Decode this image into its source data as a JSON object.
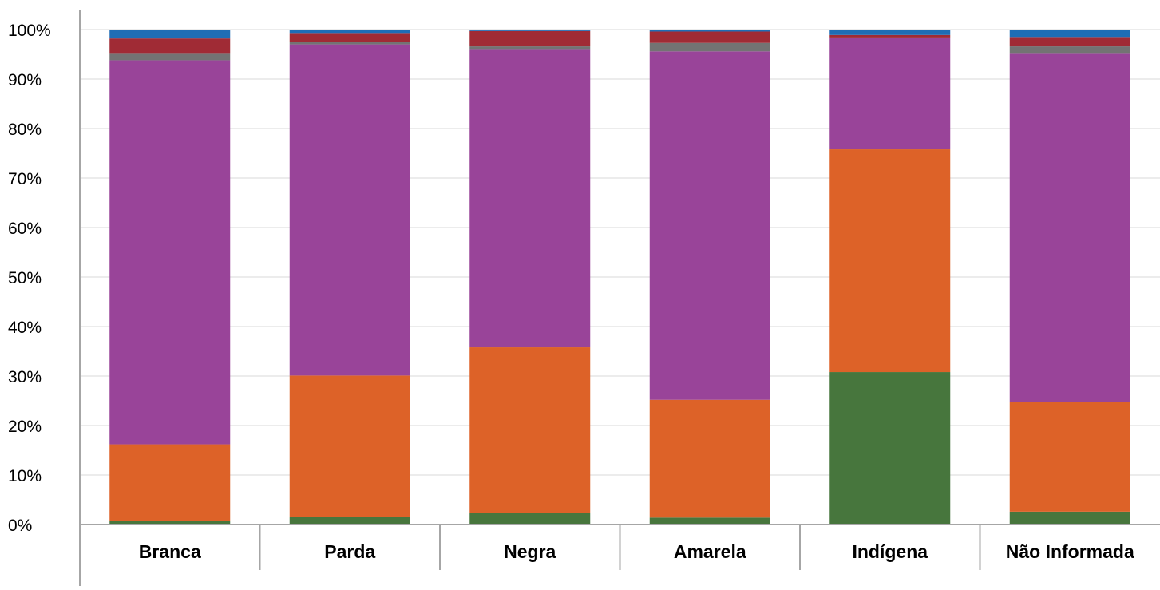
{
  "chart_data": {
    "type": "bar",
    "stacked": true,
    "normalized": true,
    "categories": [
      "Branca",
      "Parda",
      "Negra",
      "Amarela",
      "Indígena",
      "Não Informada"
    ],
    "series": [
      {
        "color": "#47763d",
        "values": [
          0.8,
          1.6,
          2.3,
          1.4,
          30.8,
          2.6
        ]
      },
      {
        "color": "#dd6228",
        "values": [
          15.4,
          28.5,
          33.5,
          23.8,
          45.0,
          22.2
        ]
      },
      {
        "color": "#994499",
        "values": [
          77.6,
          66.9,
          60.1,
          70.4,
          22.5,
          70.3
        ]
      },
      {
        "color": "#737373",
        "values": [
          1.3,
          0.5,
          0.7,
          1.7,
          0.1,
          1.5
        ]
      },
      {
        "color": "#a02b35",
        "values": [
          3.1,
          1.8,
          3.1,
          2.3,
          0.5,
          1.9
        ]
      },
      {
        "color": "#1f6db5",
        "values": [
          1.8,
          0.7,
          0.3,
          0.4,
          1.1,
          1.5
        ]
      }
    ],
    "y_ticks": [
      "0%",
      "10%",
      "20%",
      "30%",
      "40%",
      "50%",
      "60%",
      "70%",
      "80%",
      "90%",
      "100%"
    ],
    "ylim": [
      0,
      100
    ],
    "grid": true,
    "legend": false,
    "title": "",
    "xlabel": "",
    "ylabel": ""
  }
}
